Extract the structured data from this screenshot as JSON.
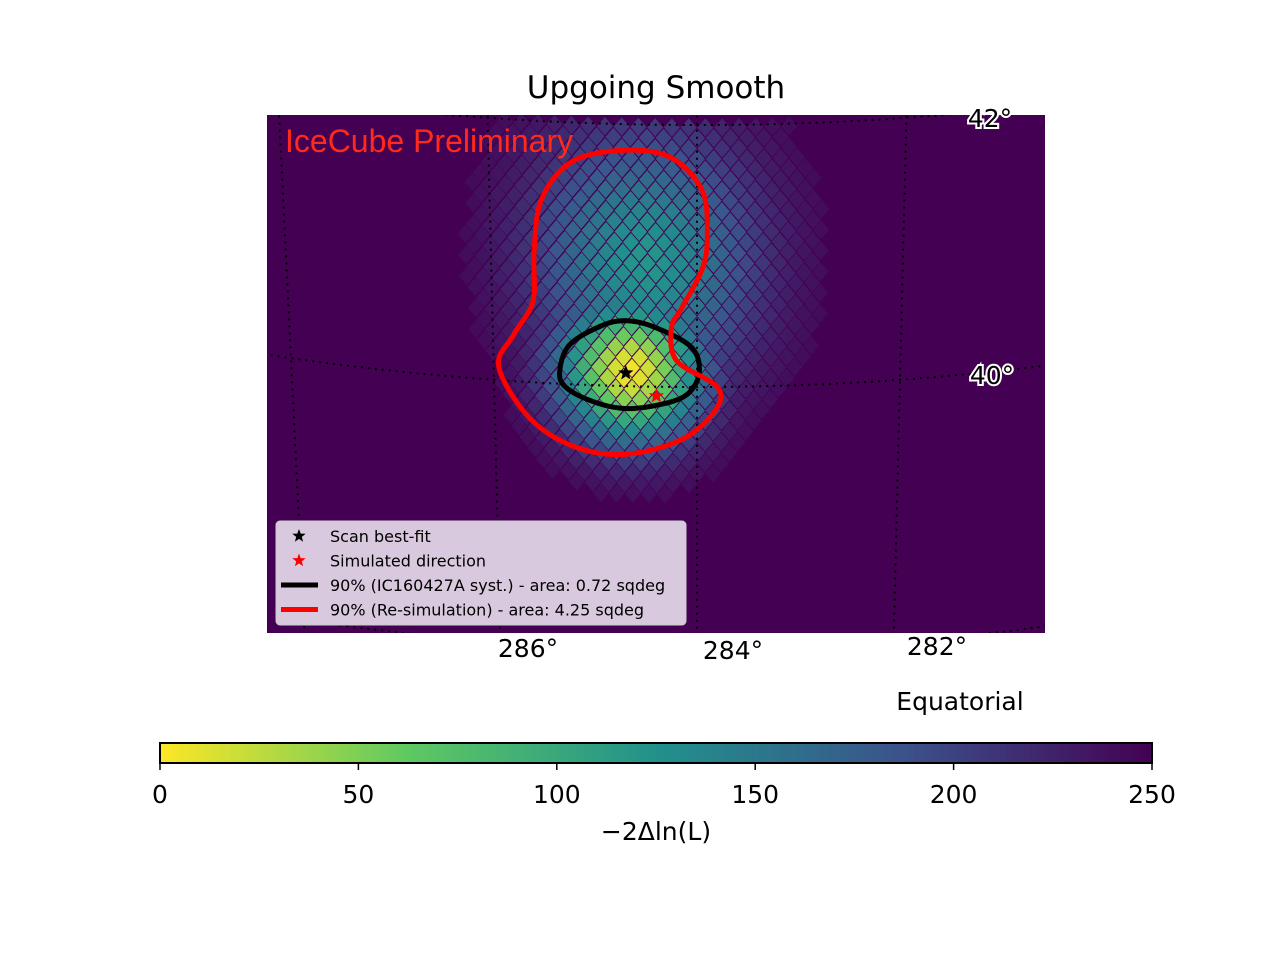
{
  "chart_data": {
    "type": "heatmap",
    "title": "Upgoing Smooth",
    "watermark": "IceCube Preliminary",
    "coord_system": "Equatorial",
    "ra_ticks": [
      {
        "value": 286,
        "label": "286°"
      },
      {
        "value": 284,
        "label": "284°"
      },
      {
        "value": 282,
        "label": "282°"
      }
    ],
    "dec_ticks": [
      {
        "value": 42,
        "label": "42°"
      },
      {
        "value": 40,
        "label": "40°"
      }
    ],
    "ra_range": [
      287.9,
      280.3
    ],
    "dec_range": [
      37.5,
      42.05
    ],
    "grid": true,
    "best_fit": {
      "ra": 284.7,
      "dec": 40.1
    },
    "simulated_direction": {
      "ra": 284.4,
      "dec": 39.93
    },
    "contours": [
      {
        "name": "90% (IC160427A syst.) - area: 0.72 sqdeg",
        "color": "#000000",
        "points": [
          [
            285.35,
            40.1
          ],
          [
            285.25,
            40.3
          ],
          [
            284.95,
            40.45
          ],
          [
            284.7,
            40.5
          ],
          [
            284.4,
            40.45
          ],
          [
            284.05,
            40.3
          ],
          [
            283.98,
            40.1
          ],
          [
            284.12,
            39.93
          ],
          [
            284.45,
            39.85
          ],
          [
            284.75,
            39.83
          ],
          [
            285.05,
            39.88
          ],
          [
            285.3,
            39.98
          ]
        ]
      },
      {
        "name": "90% (Re-simulation) - area: 4.25 sqdeg",
        "color": "#ff0000",
        "points": [
          [
            285.95,
            40.1
          ],
          [
            285.8,
            40.35
          ],
          [
            285.6,
            40.62
          ],
          [
            285.58,
            41.0
          ],
          [
            285.5,
            41.4
          ],
          [
            285.2,
            41.7
          ],
          [
            284.7,
            41.8
          ],
          [
            284.25,
            41.75
          ],
          [
            283.95,
            41.5
          ],
          [
            283.9,
            41.15
          ],
          [
            283.95,
            40.9
          ],
          [
            284.15,
            40.6
          ],
          [
            284.25,
            40.45
          ],
          [
            284.2,
            40.2
          ],
          [
            283.8,
            40.0
          ],
          [
            283.82,
            39.82
          ],
          [
            284.15,
            39.6
          ],
          [
            284.7,
            39.48
          ],
          [
            285.2,
            39.52
          ],
          [
            285.65,
            39.72
          ]
        ]
      }
    ],
    "likelihood_peaks": [
      {
        "ra": 284.65,
        "dec": 40.12,
        "sigma_ra": 0.5,
        "sigma_dec": 0.38,
        "depth": 245
      },
      {
        "ra": 284.5,
        "dec": 40.95,
        "sigma_ra": 0.75,
        "sigma_dec": 0.7,
        "depth": 130
      }
    ],
    "pixel_size_deg": 0.16,
    "legend": {
      "placement": "lower-left",
      "entries": [
        {
          "label": "Scan best-fit",
          "kind": "star",
          "color": "#000000"
        },
        {
          "label": "Simulated direction",
          "kind": "star",
          "color": "#ff0000"
        },
        {
          "label": "90% (IC160427A syst.) - area: 0.72 sqdeg",
          "kind": "line",
          "color": "#000000"
        },
        {
          "label": "90% (Re-simulation) - area: 4.25 sqdeg",
          "kind": "line",
          "color": "#ff0000"
        }
      ]
    },
    "colorbar": {
      "label": "−2Δln(L)",
      "range": [
        0,
        250
      ],
      "ticks": [
        {
          "value": 0,
          "label": "0"
        },
        {
          "value": 50,
          "label": "50"
        },
        {
          "value": 100,
          "label": "100"
        },
        {
          "value": 150,
          "label": "150"
        },
        {
          "value": 200,
          "label": "200"
        },
        {
          "value": 250,
          "label": "250"
        }
      ],
      "colormap": "viridis_r",
      "stops": [
        "#fde725",
        "#5ec962",
        "#21918c",
        "#3b528b",
        "#440154"
      ]
    },
    "colors": {
      "background": "#440154",
      "watermark": "#ff2a1a",
      "legend_bg": "#d9c9de"
    }
  }
}
